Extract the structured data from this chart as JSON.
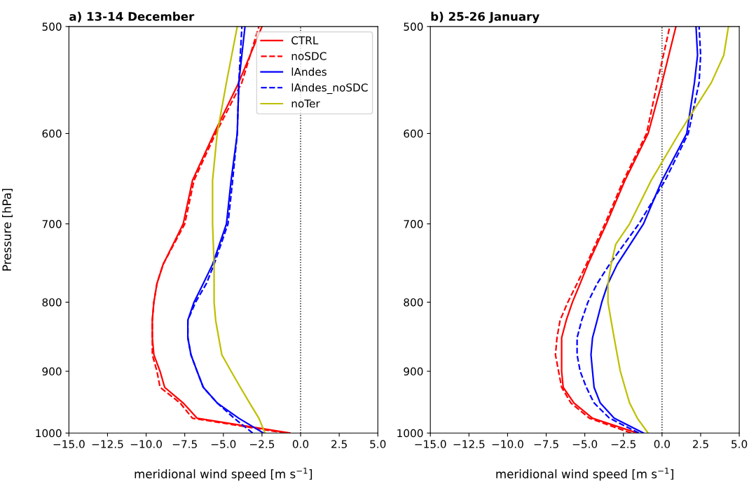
{
  "chart_data": [
    {
      "type": "line",
      "title": "a) 13-14 December",
      "xlabel": "meridional wind speed [m s$^{−1}$]",
      "ylabel": "Pressure [hPa]",
      "log": "y",
      "xlim": [
        -15,
        5
      ],
      "ylim": [
        1000,
        500
      ],
      "xticks": [
        {
          "value": -15,
          "label": "−15.0"
        },
        {
          "value": -12.5,
          "label": "−12.5"
        },
        {
          "value": -10,
          "label": "−10.0"
        },
        {
          "value": -7.5,
          "label": "−7.5"
        },
        {
          "value": -5,
          "label": "−5.0"
        },
        {
          "value": -2.5,
          "label": "−2.5"
        },
        {
          "value": 0,
          "label": "0.0"
        },
        {
          "value": 2.5,
          "label": "2.5"
        },
        {
          "value": 5,
          "label": "5.0"
        }
      ],
      "yticks": [
        500,
        600,
        700,
        800,
        900,
        1000
      ],
      "grid": false,
      "legend": "top right",
      "ref_lines": [
        {
          "axis": "x",
          "value": 0,
          "color": "#000000",
          "line_style": "dotted"
        }
      ],
      "series": [
        {
          "name": "CTRL",
          "color": "#ff0000",
          "line_style": "solid",
          "x": [
            -0.7,
            -6.7,
            -7.6,
            -8.8,
            -9.1,
            -9.5,
            -9.6,
            -9.6,
            -9.5,
            -9.3,
            -8.9,
            -7.6,
            -7.0,
            -5.6,
            -4.0,
            -2.5
          ],
          "values": [
            1000,
            975,
            950,
            925,
            900,
            875,
            850,
            825,
            800,
            775,
            750,
            700,
            650,
            600,
            550,
            500
          ]
        },
        {
          "name": "noSDC",
          "color": "#ff0000",
          "line_style": "dashed",
          "x": [
            -1.0,
            -7.0,
            -7.8,
            -9.1,
            -9.3,
            -9.6,
            -9.6,
            -9.6,
            -9.5,
            -9.3,
            -8.9,
            -7.5,
            -6.9,
            -5.5,
            -3.8,
            -2.7
          ],
          "values": [
            1000,
            975,
            950,
            925,
            900,
            875,
            850,
            825,
            800,
            775,
            750,
            700,
            650,
            600,
            550,
            500
          ]
        },
        {
          "name": "lAndes",
          "color": "#0000ff",
          "line_style": "solid",
          "x": [
            -2.4,
            -4.0,
            -5.4,
            -6.3,
            -6.7,
            -7.1,
            -7.3,
            -7.3,
            -6.9,
            -6.3,
            -5.7,
            -4.8,
            -4.5,
            -4.1,
            -4.0,
            -3.6
          ],
          "values": [
            1000,
            975,
            950,
            925,
            900,
            875,
            850,
            825,
            800,
            775,
            750,
            700,
            650,
            600,
            550,
            500
          ]
        },
        {
          "name": "lAndes_noSDC",
          "color": "#0000ff",
          "line_style": "dashed",
          "x": [
            -3.1,
            -4.3,
            -5.4,
            -6.3,
            -6.7,
            -7.1,
            -7.3,
            -7.3,
            -6.8,
            -6.1,
            -5.6,
            -4.7,
            -4.4,
            -4.1,
            -4.0,
            -3.8
          ],
          "values": [
            1000,
            975,
            950,
            925,
            900,
            875,
            850,
            825,
            800,
            775,
            750,
            700,
            650,
            600,
            550,
            500
          ]
        },
        {
          "name": "noTer",
          "color": "#bfbf00",
          "line_style": "solid",
          "x": [
            -2.3,
            -2.7,
            -3.3,
            -3.9,
            -4.5,
            -5.1,
            -5.3,
            -5.5,
            -5.6,
            -5.6,
            -5.6,
            -5.7,
            -5.7,
            -5.4,
            -4.8,
            -4.1
          ],
          "values": [
            1000,
            975,
            950,
            925,
            900,
            875,
            850,
            825,
            800,
            775,
            750,
            700,
            650,
            600,
            550,
            500
          ]
        }
      ]
    },
    {
      "type": "line",
      "title": "b) 25-26 January",
      "xlabel": "meridional wind speed [m s$^{−1}$]",
      "log": "y",
      "xlim": [
        -15,
        5
      ],
      "ylim": [
        1000,
        500
      ],
      "xticks": [
        {
          "value": -15,
          "label": "−15.0"
        },
        {
          "value": -12.5,
          "label": "−12.5"
        },
        {
          "value": -10,
          "label": "−10.0"
        },
        {
          "value": -7.5,
          "label": "−7.5"
        },
        {
          "value": -5,
          "label": "−5.0"
        },
        {
          "value": -2.5,
          "label": "−2.5"
        },
        {
          "value": 0,
          "label": "0.0"
        },
        {
          "value": 2.5,
          "label": "2.5"
        },
        {
          "value": 5,
          "label": "5.0"
        }
      ],
      "yticks": [
        500,
        600,
        700,
        800,
        900,
        1000
      ],
      "grid": false,
      "ref_lines": [
        {
          "axis": "x",
          "value": 0,
          "color": "#000000",
          "line_style": "dotted"
        }
      ],
      "series": [
        {
          "color": "#ff0000",
          "line_style": "solid",
          "x": [
            -1.6,
            -4.5,
            -5.7,
            -6.4,
            -6.5,
            -6.5,
            -6.5,
            -6.2,
            -5.8,
            -5.3,
            -4.8,
            -3.6,
            -2.4,
            -0.9,
            0.0,
            0.9
          ],
          "values": [
            1000,
            975,
            950,
            925,
            900,
            875,
            850,
            825,
            800,
            775,
            750,
            700,
            650,
            600,
            550,
            500
          ]
        },
        {
          "color": "#ff0000",
          "line_style": "dashed",
          "x": [
            -2.0,
            -4.7,
            -5.9,
            -6.5,
            -6.7,
            -6.9,
            -6.8,
            -6.6,
            -6.1,
            -5.5,
            -4.9,
            -3.7,
            -2.5,
            -1.0,
            -0.3,
            0.5
          ],
          "values": [
            1000,
            975,
            950,
            925,
            900,
            875,
            850,
            825,
            800,
            775,
            750,
            700,
            650,
            600,
            550,
            500
          ]
        },
        {
          "color": "#0000ff",
          "line_style": "solid",
          "x": [
            -1.2,
            -3.1,
            -4.0,
            -4.4,
            -4.5,
            -4.6,
            -4.5,
            -4.2,
            -3.9,
            -3.5,
            -2.9,
            -1.2,
            0.0,
            1.6,
            2.1,
            2.3,
            2.2
          ],
          "values": [
            1000,
            975,
            950,
            925,
            900,
            875,
            850,
            825,
            800,
            775,
            750,
            700,
            650,
            600,
            550,
            525,
            500
          ]
        },
        {
          "color": "#0000ff",
          "line_style": "dashed",
          "x": [
            -1.5,
            -3.4,
            -4.4,
            -4.9,
            -5.3,
            -5.5,
            -5.5,
            -5.2,
            -4.8,
            -4.2,
            -3.4,
            -1.5,
            0.2,
            1.7,
            2.4,
            2.5,
            2.4
          ],
          "values": [
            1000,
            975,
            950,
            925,
            900,
            875,
            850,
            825,
            800,
            775,
            750,
            700,
            650,
            600,
            550,
            525,
            500
          ]
        },
        {
          "color": "#bfbf00",
          "line_style": "solid",
          "x": [
            -0.9,
            -1.6,
            -2.1,
            -2.4,
            -2.7,
            -2.9,
            -3.1,
            -3.3,
            -3.5,
            -3.5,
            -3.3,
            -3.0,
            -2.1,
            -0.7,
            1.1,
            3.2,
            4.0,
            4.3
          ],
          "values": [
            1000,
            975,
            950,
            925,
            900,
            875,
            850,
            825,
            800,
            775,
            750,
            725,
            700,
            650,
            600,
            550,
            525,
            500
          ]
        }
      ]
    }
  ]
}
